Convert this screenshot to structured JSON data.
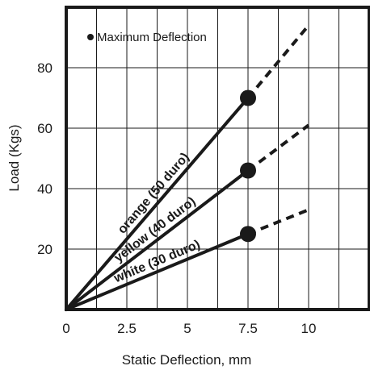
{
  "chart_data": {
    "type": "line",
    "title": "",
    "xlabel": "Static Deflection, mm",
    "ylabel": "Load (Kgs)",
    "xlim": [
      0,
      12.5
    ],
    "ylim": [
      0,
      100
    ],
    "x_ticks": [
      0,
      2.5,
      5,
      7.5,
      10
    ],
    "x_tick_labels": [
      "0",
      "2.5",
      "5",
      "7.5",
      "10"
    ],
    "y_ticks": [
      20,
      40,
      60,
      80
    ],
    "y_tick_labels": [
      "20",
      "40",
      "60",
      "80"
    ],
    "grid": {
      "vertical_step": 1.25,
      "horizontal_step": 20
    },
    "legend": {
      "text": "Maximum Deflection",
      "placement": "top-left"
    },
    "colors": {
      "line": "#1a1a1a",
      "grid": "#1a1a1a",
      "frame": "#1a1a1a"
    },
    "series": [
      {
        "name": "orange (50 duro)",
        "points": [
          [
            0,
            0
          ],
          [
            7.5,
            70
          ]
        ],
        "max_deflection": [
          7.5,
          70
        ],
        "extension": [
          [
            7.5,
            70
          ],
          [
            10,
            94
          ]
        ]
      },
      {
        "name": "yellow (40 duro)",
        "points": [
          [
            0,
            0
          ],
          [
            7.5,
            46
          ]
        ],
        "max_deflection": [
          7.5,
          46
        ],
        "extension": [
          [
            7.5,
            46
          ],
          [
            10,
            61
          ]
        ]
      },
      {
        "name": "white (30 duro)",
        "points": [
          [
            0,
            0
          ],
          [
            7.5,
            25
          ]
        ],
        "max_deflection": [
          7.5,
          25
        ],
        "extension": [
          [
            7.5,
            25
          ],
          [
            10,
            33
          ]
        ]
      }
    ]
  }
}
